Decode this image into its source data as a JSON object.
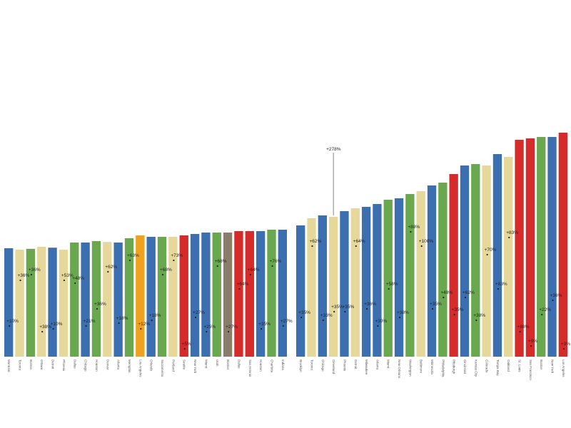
{
  "chart_data": {
    "type": "bar",
    "title": "",
    "xlabel": "",
    "ylabel": "",
    "ylim": [
      0,
      100
    ],
    "grid": false,
    "legend": "none",
    "palette": {
      "blue": "#3b6fb0",
      "green": "#6aa84f",
      "tan": "#e6d79a",
      "red": "#d62b2b",
      "orange": "#f0a21e",
      "brown": "#8b7d6b"
    },
    "callout": {
      "label": "+278%",
      "bar_index": 29
    },
    "bars": [
      {
        "category": "Montreal",
        "value": 38.0,
        "color": "blue",
        "label": "+10%",
        "label_level": 12
      },
      {
        "category": "Toronto",
        "value": 37.5,
        "color": "tan",
        "label": "+36%",
        "label_level": 28
      },
      {
        "category": "Boston",
        "value": 37.8,
        "color": "green",
        "label": "+36%",
        "label_level": 30
      },
      {
        "category": "Ottawa",
        "value": 38.5,
        "color": "tan",
        "label": "+38%",
        "label_level": 10
      },
      {
        "category": "Detroit",
        "value": 38.2,
        "color": "blue",
        "label": "+10%",
        "label_level": 11
      },
      {
        "category": "Phoenix",
        "value": 37.5,
        "color": "tan",
        "label": "+53%",
        "label_level": 28
      },
      {
        "category": "Dallas",
        "value": 40.0,
        "color": "green",
        "label": "+48%",
        "label_level": 27
      },
      {
        "category": "Chicago",
        "value": 40.0,
        "color": "blue",
        "label": "+21%",
        "label_level": 12
      },
      {
        "category": "Houston",
        "value": 40.5,
        "color": "green",
        "label": "+36%",
        "label_level": 18
      },
      {
        "category": "Denver",
        "value": 40.2,
        "color": "tan",
        "label": "+62%",
        "label_level": 31
      },
      {
        "category": "Atlanta",
        "value": 40.0,
        "color": "blue",
        "label": "+18%",
        "label_level": 13
      },
      {
        "category": "Memphis",
        "value": 41.5,
        "color": "green",
        "label": "+63%",
        "label_level": 35
      },
      {
        "category": "Los Angeles",
        "value": 42.5,
        "color": "orange",
        "label": "+12%",
        "label_level": 11
      },
      {
        "category": "Orlando",
        "value": 42.0,
        "color": "blue",
        "label": "+18%",
        "label_level": 14
      },
      {
        "category": "Sacramento",
        "value": 42.0,
        "color": "green",
        "label": "+68%",
        "label_level": 30
      },
      {
        "category": "Portland",
        "value": 42.0,
        "color": "tan",
        "label": "+73%",
        "label_level": 35
      },
      {
        "category": "Seattle",
        "value": 42.5,
        "color": "red",
        "label": "+5%",
        "label_level": 4
      },
      {
        "category": "New York",
        "value": 43.0,
        "color": "blue",
        "label": "+27%",
        "label_level": 15
      },
      {
        "category": "Miami",
        "value": 43.5,
        "color": "blue",
        "label": "+25%",
        "label_level": 10
      },
      {
        "category": "Utah",
        "value": 43.5,
        "color": "green",
        "label": "+68%",
        "label_level": 33
      },
      {
        "category": "Boston",
        "value": 43.5,
        "color": "brown",
        "label": "+27%",
        "label_level": 10
      },
      {
        "category": "Dallas",
        "value": 44.0,
        "color": "red",
        "label": "+64%",
        "label_level": 25
      },
      {
        "category": "San Antonio",
        "value": 44.0,
        "color": "red",
        "label": "+64%",
        "label_level": 30
      },
      {
        "category": "Houston",
        "value": 44.0,
        "color": "blue",
        "label": "+35%",
        "label_level": 11
      },
      {
        "category": "Charlotte",
        "value": 44.5,
        "color": "green",
        "label": "+76%",
        "label_level": 33
      },
      {
        "category": "Indiana",
        "value": 44.5,
        "color": "blue",
        "label": "+27%",
        "label_level": 12
      },
      {
        "category": "Brooklyn",
        "value": 46.0,
        "color": "blue",
        "label": "+35%",
        "label_level": 15
      },
      {
        "category": "Toronto",
        "value": 48.5,
        "color": "tan",
        "label": "+62%",
        "label_level": 40
      },
      {
        "category": "Chicago",
        "value": 49.5,
        "color": "blue",
        "label": "+33%",
        "label_level": 14
      },
      {
        "category": "Cleveland",
        "value": 49.0,
        "color": "tan",
        "label": "+35%",
        "label_level": 17
      },
      {
        "category": "Phoenix",
        "value": 51.0,
        "color": "blue",
        "label": "+35%",
        "label_level": 17
      },
      {
        "category": "Detroit",
        "value": 52.0,
        "color": "tan",
        "label": "+64%",
        "label_level": 40
      },
      {
        "category": "Milwaukee",
        "value": 52.5,
        "color": "blue",
        "label": "+36%",
        "label_level": 18
      },
      {
        "category": "Atlanta",
        "value": 53.5,
        "color": "blue",
        "label": "+30%",
        "label_level": 12
      },
      {
        "category": "Miami",
        "value": 55.0,
        "color": "green",
        "label": "+58%",
        "label_level": 25
      },
      {
        "category": "New Orleans",
        "value": 55.5,
        "color": "blue",
        "label": "+38%",
        "label_level": 15
      },
      {
        "category": "Washington",
        "value": 57.0,
        "color": "green",
        "label": "+88%",
        "label_level": 45
      },
      {
        "category": "Baltimore",
        "value": 58.0,
        "color": "tan",
        "label": "+100%",
        "label_level": 40
      },
      {
        "category": "Minnesota",
        "value": 60.0,
        "color": "blue",
        "label": "+35%",
        "label_level": 18
      },
      {
        "category": "Philadelphia",
        "value": 61.0,
        "color": "green",
        "label": "+48%",
        "label_level": 22
      },
      {
        "category": "Pittsburgh",
        "value": 64.0,
        "color": "red",
        "label": "+35%",
        "label_level": 16
      },
      {
        "category": "Cincinnati",
        "value": 67.0,
        "color": "blue",
        "label": "+62%",
        "label_level": 22
      },
      {
        "category": "Kansas City",
        "value": 67.5,
        "color": "green",
        "label": "+38%",
        "label_level": 14
      },
      {
        "category": "Colorado",
        "value": 67.0,
        "color": "tan",
        "label": "+70%",
        "label_level": 37
      },
      {
        "category": "Tampa Bay",
        "value": 71.0,
        "color": "blue",
        "label": "+83%",
        "label_level": 25
      },
      {
        "category": "Oakland",
        "value": 70.0,
        "color": "tan",
        "label": "+83%",
        "label_level": 43
      },
      {
        "category": "St. Louis",
        "value": 76.0,
        "color": "red",
        "label": "+88%",
        "label_level": 10
      },
      {
        "category": "San Francisco",
        "value": 76.5,
        "color": "red",
        "label": "+9%",
        "label_level": 5
      },
      {
        "category": "Boston",
        "value": 77.0,
        "color": "green",
        "label": "+22%",
        "label_level": 16
      },
      {
        "category": "New York",
        "value": 77.0,
        "color": "blue",
        "label": "+36%",
        "label_level": 21
      },
      {
        "category": "Los Angeles",
        "value": 78.5,
        "color": "red",
        "label": "+3%",
        "label_level": 4
      }
    ]
  }
}
